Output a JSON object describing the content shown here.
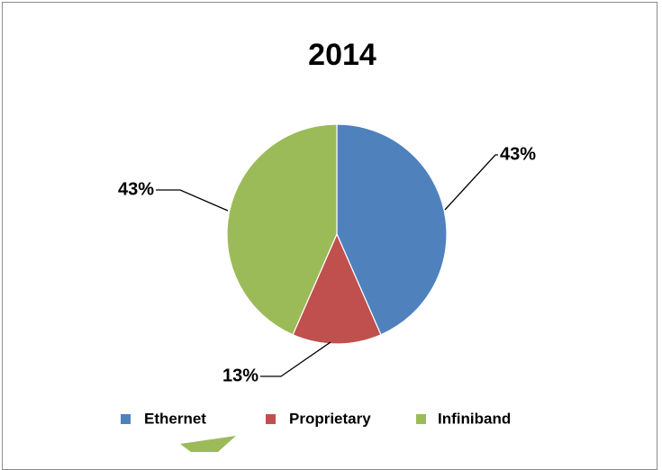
{
  "chart_data": {
    "type": "pie",
    "title": "2014",
    "categories": [
      "Ethernet",
      "Proprietary",
      "Infiniband"
    ],
    "values": [
      43,
      13,
      43
    ],
    "labels": [
      "43%",
      "13%",
      "43%"
    ],
    "colors": [
      "#4f81bd",
      "#c0504d",
      "#9bbb59"
    ],
    "legend_position": "bottom"
  }
}
